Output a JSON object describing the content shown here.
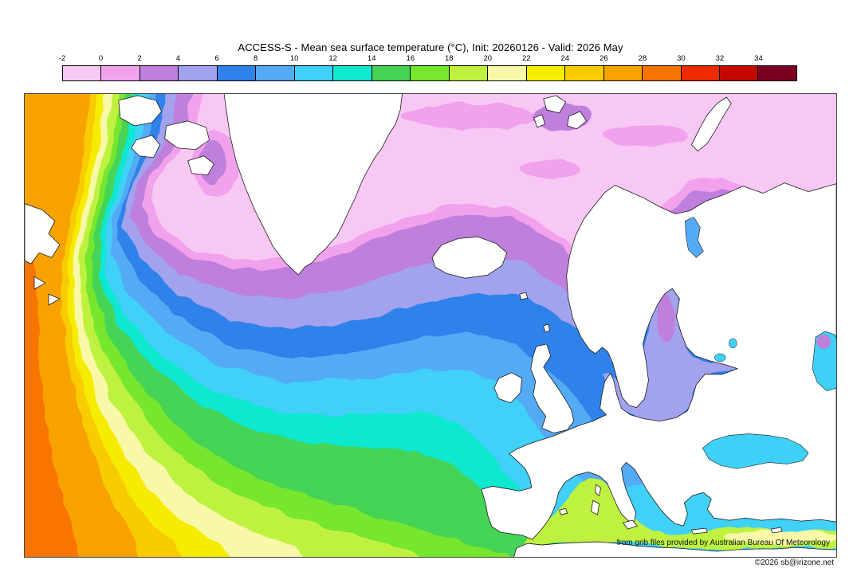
{
  "header": {
    "title": "ACCESS-S - Mean sea surface temperature (°C), Init: 20260126 - Valid: 2026 May"
  },
  "colorbar": {
    "tick_labels": [
      "-2",
      "0",
      "2",
      "4",
      "6",
      "8",
      "10",
      "12",
      "14",
      "16",
      "18",
      "20",
      "22",
      "24",
      "26",
      "28",
      "30",
      "32",
      "34"
    ],
    "cell_colors": [
      "#f8c8f4",
      "#f2a2ec",
      "#bf7fdd",
      "#a2a2ee",
      "#2e82ea",
      "#55aaf5",
      "#3fd0f8",
      "#10e8cf",
      "#44d455",
      "#77e62e",
      "#bff23f",
      "#f8f8a8",
      "#f6ec00",
      "#f8cc00",
      "#f8a200",
      "#f87400",
      "#ee2a00",
      "#c40800",
      "#7c0022"
    ],
    "cell_ranges_c": [
      "-2–0",
      "0–2",
      "2–4",
      "4–6",
      "6–8",
      "8–10",
      "10–12",
      "12–14",
      "14–16",
      "16–18",
      "18–20",
      "20–22",
      "22–24",
      "24–26",
      "26–28",
      "28–30",
      "30–32",
      "32–34",
      "34–36"
    ]
  },
  "map": {
    "attribution_line1": "from grib files provided by Australian Bureau Of Meteorology",
    "attribution_line2": "©2026 sb@irizone.net"
  },
  "chart_data": {
    "type": "heatmap",
    "value_unit": "°C",
    "scale_min": -2,
    "scale_max": 36,
    "scale_step": 2
  }
}
